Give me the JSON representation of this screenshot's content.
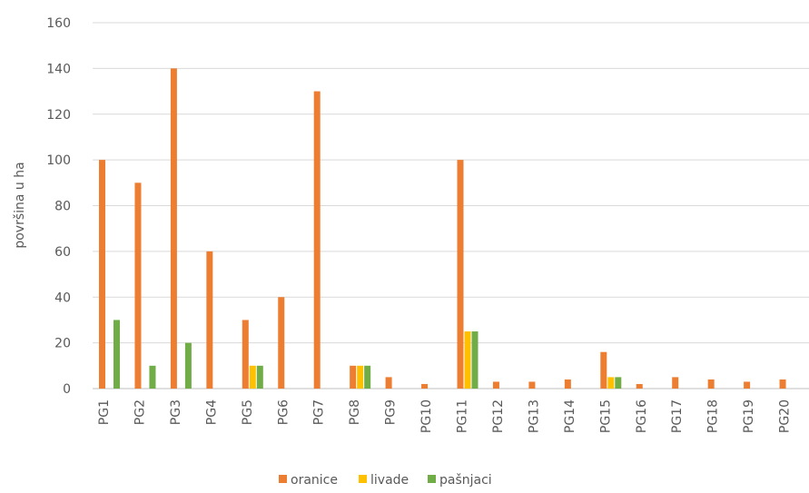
{
  "chart_data": {
    "type": "bar",
    "title": "",
    "xlabel": "",
    "ylabel": "površina u ha",
    "ylim": [
      0,
      160
    ],
    "yticks": [
      0,
      20,
      40,
      60,
      80,
      100,
      120,
      140,
      160
    ],
    "grid": true,
    "legend_position": "bottom",
    "categories": [
      "PG1",
      "PG2",
      "PG3",
      "PG4",
      "PG5",
      "PG6",
      "PG7",
      "PG8",
      "PG9",
      "PG10",
      "PG11",
      "PG12",
      "PG13",
      "PG14",
      "PG15",
      "PG16",
      "PG17",
      "PG18",
      "PG19",
      "PG20"
    ],
    "series": [
      {
        "name": "oranice",
        "color": "#ED7D31",
        "values": [
          100,
          90,
          140,
          60,
          30,
          40,
          130,
          10,
          5,
          2,
          100,
          3,
          3,
          4,
          16,
          2,
          5,
          4,
          3,
          4
        ]
      },
      {
        "name": "livade",
        "color": "#FFC000",
        "values": [
          0,
          0,
          0,
          0,
          10,
          0,
          0,
          10,
          0,
          0,
          25,
          0,
          0,
          0,
          5,
          0,
          0,
          0,
          0,
          0
        ]
      },
      {
        "name": "pašnjaci",
        "color": "#70AD47",
        "values": [
          30,
          10,
          20,
          0,
          10,
          0,
          0,
          10,
          0,
          0,
          25,
          0,
          0,
          0,
          5,
          0,
          0,
          0,
          0,
          0
        ]
      }
    ]
  }
}
